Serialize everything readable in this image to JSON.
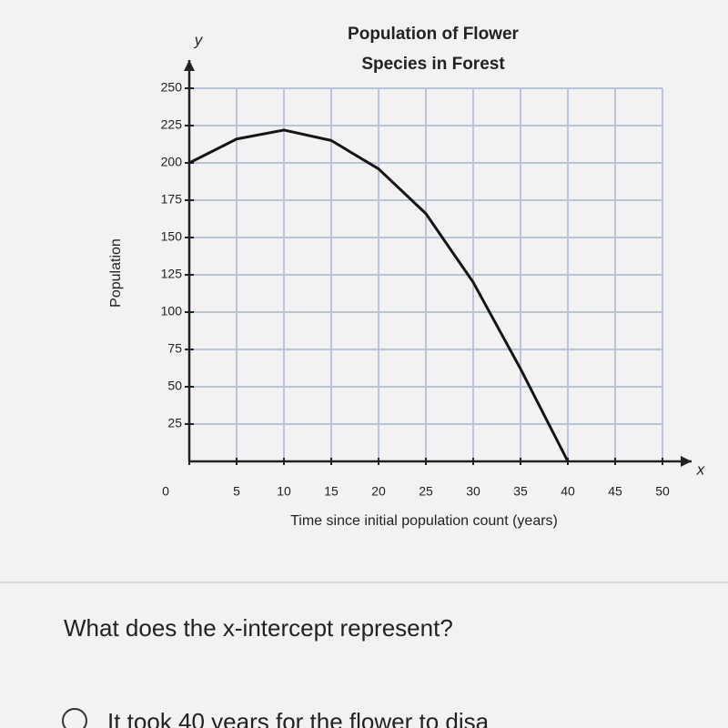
{
  "chart_data": {
    "type": "line",
    "title": "Population of Flower",
    "subtitle": "Species in Forest",
    "x_label": "Time since initial population count (years)",
    "y_label": "Population",
    "x_axis_symbol": "x",
    "y_axis_symbol": "y",
    "x": [
      0,
      5,
      10,
      15,
      20,
      25,
      30,
      35,
      40
    ],
    "values": [
      200,
      216,
      222,
      215,
      196,
      166,
      120,
      62,
      0
    ],
    "color": "#151515",
    "xlim": [
      0,
      50
    ],
    "xticks": [
      0,
      5,
      10,
      15,
      20,
      25,
      30,
      35,
      40,
      45,
      50
    ],
    "ylim": [
      0,
      250
    ],
    "yticks": [
      25,
      50,
      75,
      100,
      125,
      150,
      175,
      200,
      225,
      250
    ],
    "grid": true
  },
  "question": "What does the x-intercept represent?",
  "options": [
    "It took 40 years for the flower to disa"
  ]
}
